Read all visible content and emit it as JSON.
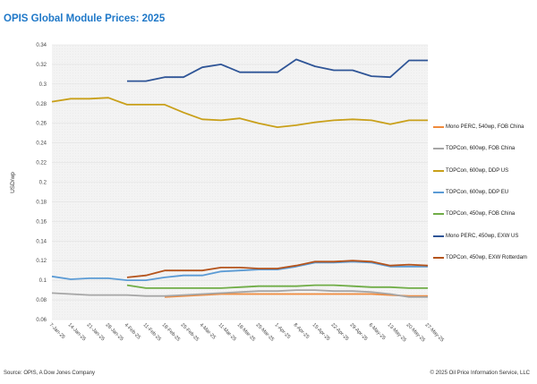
{
  "header": {
    "title": "OPIS Global Module Prices: 2025"
  },
  "footer": {
    "source": "Source: OPIS, A Dow Jones Company",
    "copyright": "© 2025 Oil Price Information Service, LLC"
  },
  "chart_data": {
    "type": "line",
    "title": "OPIS Global Module Prices: 2025",
    "xlabel": "",
    "ylabel": "USD/wp",
    "ylim": [
      0.06,
      0.34
    ],
    "yticks": [
      0.06,
      0.08,
      0.1,
      0.12,
      0.14,
      0.16,
      0.18,
      0.2,
      0.22,
      0.24,
      0.26,
      0.28,
      0.3,
      0.32,
      0.34
    ],
    "ytick_labels": [
      "0.06",
      "0.08",
      "0.1",
      "0.12",
      "0.14",
      "0.16",
      "0.18",
      "0.2",
      "0.22",
      "0.24",
      "0.26",
      "0.28",
      "0.3",
      "0.32",
      "0.34"
    ],
    "grid": true,
    "legend_position": "right",
    "categories": [
      "7-Jan-25",
      "14-Jan-25",
      "21-Jan-25",
      "28-Jan-25",
      "4-Feb-25",
      "11-Feb-25",
      "18-Feb-25",
      "25-Feb-25",
      "4-Mar-25",
      "11-Mar-25",
      "18-Mar-25",
      "25-Mar-25",
      "1-Apr-25",
      "8-Apr-25",
      "15-Apr-25",
      "22-Apr-25",
      "29-Apr-25",
      "6-May-25",
      "13-May-25",
      "20-May-25",
      "27-May-25"
    ],
    "series": [
      {
        "name": "Mono PERC, 540wp, FOB China",
        "color": "#f08a3c",
        "values": [
          null,
          null,
          null,
          null,
          null,
          null,
          0.083,
          0.084,
          0.085,
          0.086,
          0.086,
          0.086,
          0.086,
          0.086,
          0.086,
          0.086,
          0.086,
          0.086,
          0.085,
          0.084,
          0.084
        ]
      },
      {
        "name": "TOPCon, 600wp, FOB China",
        "color": "#a6a6a6",
        "values": [
          0.087,
          0.086,
          0.085,
          0.085,
          0.085,
          0.084,
          0.084,
          0.085,
          0.086,
          0.087,
          0.088,
          0.089,
          0.089,
          0.09,
          0.09,
          0.089,
          0.089,
          0.088,
          0.086,
          0.083,
          0.083
        ]
      },
      {
        "name": "TOPCon, 600wp, DDP US",
        "color": "#c9a01a",
        "values": [
          0.282,
          0.285,
          0.285,
          0.286,
          0.279,
          0.279,
          0.279,
          0.271,
          0.264,
          0.263,
          0.265,
          0.26,
          0.256,
          0.258,
          0.261,
          0.263,
          0.264,
          0.263,
          0.259,
          0.263,
          0.263
        ]
      },
      {
        "name": "TOPCon, 600wp, DDP EU",
        "color": "#5b9bd5",
        "values": [
          0.104,
          0.101,
          0.102,
          0.102,
          0.1,
          0.1,
          0.103,
          0.105,
          0.105,
          0.109,
          0.11,
          0.111,
          0.111,
          0.114,
          0.118,
          0.118,
          0.119,
          0.118,
          0.114,
          0.114,
          0.114
        ]
      },
      {
        "name": "TOPCon, 450wp, FOB China",
        "color": "#70ad47",
        "values": [
          null,
          null,
          null,
          null,
          0.095,
          0.092,
          0.092,
          0.092,
          0.092,
          0.092,
          0.093,
          0.094,
          0.094,
          0.094,
          0.095,
          0.095,
          0.094,
          0.093,
          0.093,
          0.092,
          0.092
        ]
      },
      {
        "name": "Mono PERC, 450wp, EXW US",
        "color": "#2f5597",
        "values": [
          null,
          null,
          null,
          null,
          0.303,
          0.303,
          0.307,
          0.307,
          0.317,
          0.32,
          0.312,
          0.312,
          0.312,
          0.325,
          0.318,
          0.314,
          0.314,
          0.308,
          0.307,
          0.324,
          0.324
        ]
      },
      {
        "name": "TOPCon, 450wp, EXW Rotterdam",
        "color": "#b5541c",
        "values": [
          null,
          null,
          null,
          null,
          0.103,
          0.105,
          0.11,
          0.11,
          0.11,
          0.113,
          0.113,
          0.112,
          0.112,
          0.115,
          0.119,
          0.119,
          0.12,
          0.119,
          0.115,
          0.116,
          0.115
        ]
      }
    ]
  }
}
